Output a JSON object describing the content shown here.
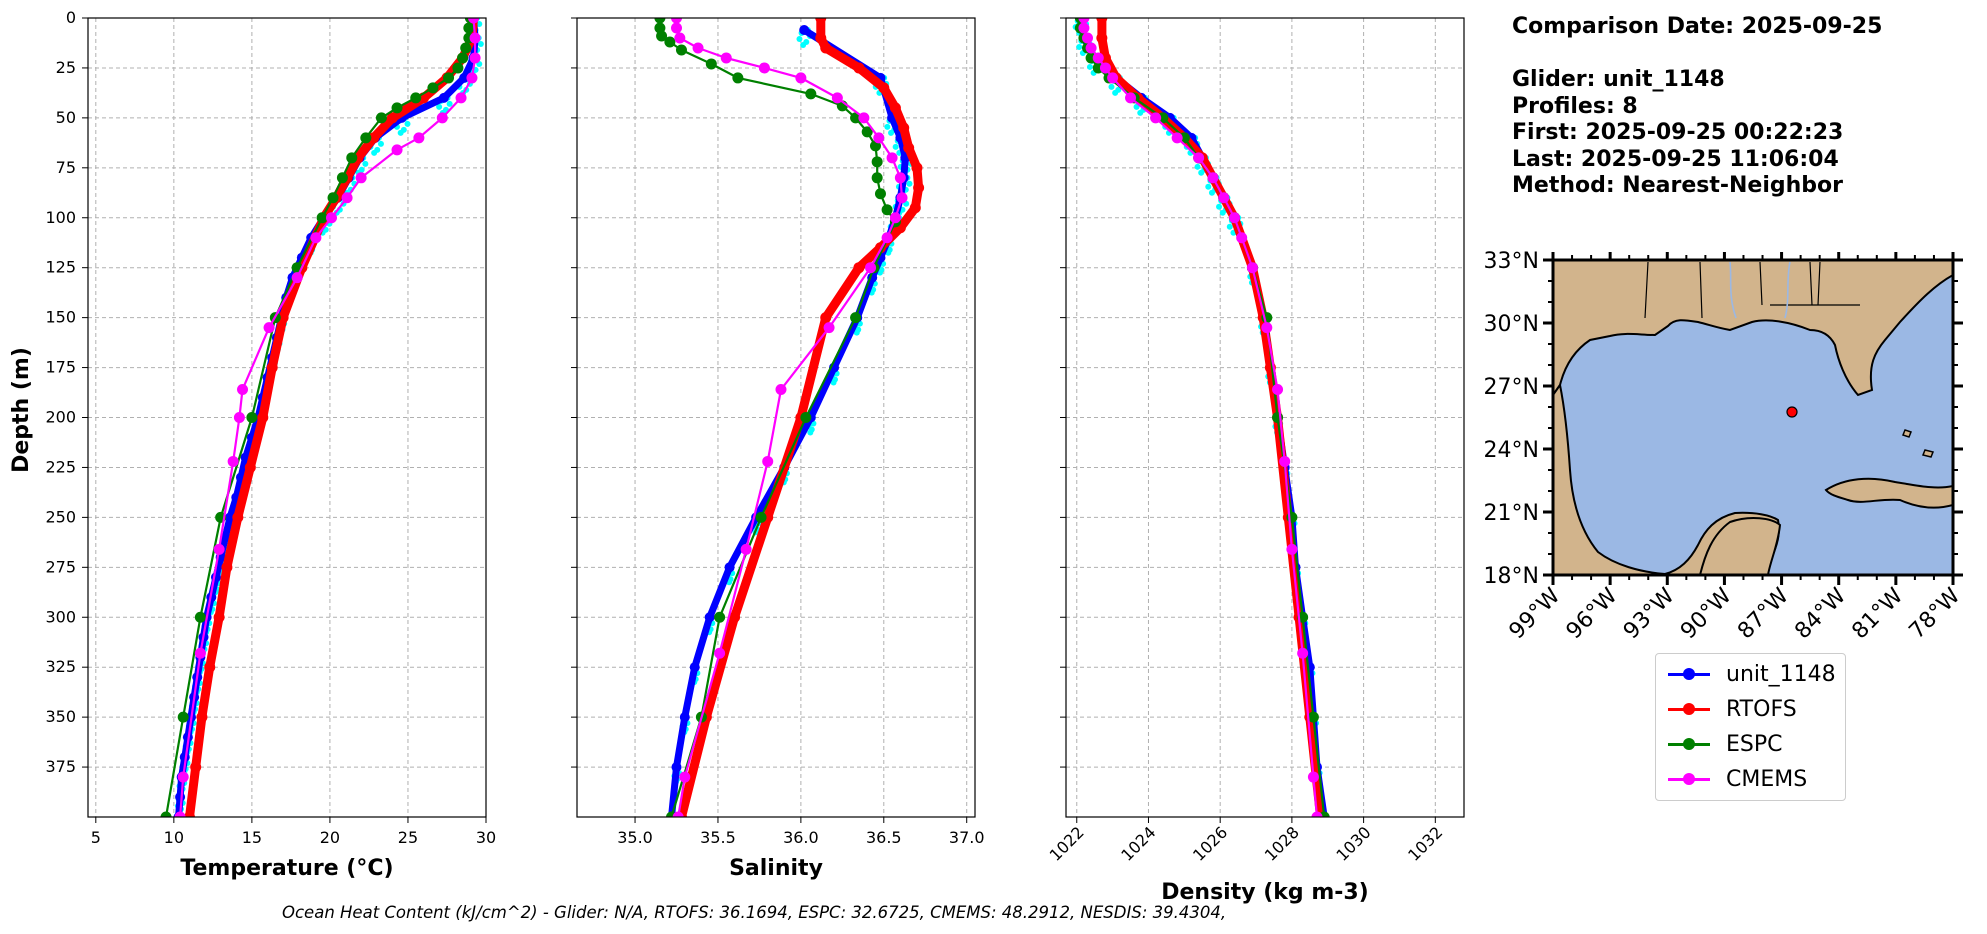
{
  "info": {
    "comparison_date": "Comparison Date: 2025-09-25",
    "glider": "Glider: unit_1148",
    "profiles": "Profiles: 8",
    "first": "First: 2025-09-25 00:22:23",
    "last": "Last: 2025-09-25 11:06:04",
    "method": "Method: Nearest-Neighbor"
  },
  "footer": "Ocean Heat Content (kJ/cm^2) - Glider: N/A,  RTOFS: 36.1694,  ESPC: 32.6725,  CMEMS: 48.2912,  NESDIS: 39.4304,",
  "legend": [
    {
      "label": "unit_1148",
      "color": "#0000ff"
    },
    {
      "label": "RTOFS",
      "color": "#ff0000"
    },
    {
      "label": "ESPC",
      "color": "#008000"
    },
    {
      "label": "CMEMS",
      "color": "#ff00ff"
    }
  ],
  "chart_data": [
    {
      "type": "line",
      "xlabel": "Temperature (°C)",
      "ylabel": "Depth (m)",
      "xlim": [
        4.5,
        30
      ],
      "ylim": [
        400,
        0
      ],
      "xticks": [
        5,
        10,
        15,
        20,
        25,
        30
      ],
      "yticks": [
        0,
        25,
        50,
        75,
        100,
        125,
        150,
        175,
        200,
        225,
        250,
        275,
        300,
        325,
        350,
        375
      ],
      "grid": true,
      "series": [
        {
          "name": "unit_1148",
          "color": "#0000ff",
          "depth": [
            0,
            10,
            20,
            30,
            40,
            50,
            60,
            70,
            80,
            90,
            100,
            110,
            120,
            130,
            140,
            150,
            160,
            170,
            180,
            190,
            200,
            210,
            220,
            230,
            240,
            250,
            260,
            270,
            280,
            290,
            300,
            310,
            320,
            330,
            340,
            350,
            360,
            370,
            380,
            390,
            400
          ],
          "values": [
            29.2,
            29.3,
            29.2,
            28.6,
            27.3,
            24.6,
            22.9,
            21.9,
            21.2,
            20.5,
            19.6,
            18.8,
            18.2,
            17.6,
            17.2,
            16.9,
            16.6,
            16.3,
            16.0,
            15.7,
            15.4,
            15.0,
            14.6,
            14.3,
            14.0,
            13.6,
            13.3,
            13.0,
            12.7,
            12.4,
            12.1,
            11.9,
            11.7,
            11.5,
            11.3,
            11.1,
            10.9,
            10.7,
            10.5,
            10.4,
            10.3
          ]
        },
        {
          "name": "RTOFS",
          "color": "#ff0000",
          "depth": [
            0,
            10,
            20,
            30,
            40,
            50,
            60,
            70,
            80,
            90,
            100,
            125,
            150,
            175,
            200,
            225,
            250,
            275,
            300,
            325,
            350,
            375,
            400
          ],
          "values": [
            29.2,
            29.1,
            28.5,
            27.5,
            26.0,
            24.0,
            22.8,
            21.8,
            21.1,
            20.4,
            19.6,
            18.2,
            17.0,
            16.3,
            15.7,
            14.9,
            14.1,
            13.4,
            12.9,
            12.3,
            11.8,
            11.4,
            11.0
          ]
        },
        {
          "name": "ESPC",
          "color": "#008000",
          "depth": [
            0,
            5,
            10,
            15,
            20,
            25,
            30,
            35,
            40,
            45,
            50,
            60,
            70,
            80,
            90,
            100,
            125,
            150,
            200,
            250,
            300,
            350,
            400
          ],
          "values": [
            29.0,
            28.9,
            28.9,
            28.7,
            28.5,
            28.2,
            27.6,
            26.6,
            25.5,
            24.3,
            23.3,
            22.3,
            21.4,
            20.8,
            20.2,
            19.5,
            17.9,
            16.5,
            15.0,
            13.0,
            11.7,
            10.6,
            9.5
          ]
        },
        {
          "name": "CMEMS",
          "color": "#ff00ff",
          "depth": [
            0,
            10,
            20,
            30,
            40,
            50,
            60,
            66,
            80,
            90,
            100,
            110,
            130,
            155,
            186,
            200,
            222,
            266,
            318,
            380,
            400
          ],
          "values": [
            29.2,
            29.3,
            29.3,
            29.1,
            28.4,
            27.2,
            25.7,
            24.3,
            22.0,
            21.1,
            20.1,
            19.1,
            17.9,
            16.1,
            14.4,
            14.2,
            13.8,
            12.9,
            11.7,
            10.6,
            10.4
          ]
        }
      ]
    },
    {
      "type": "line",
      "xlabel": "Salinity",
      "xlim": [
        34.65,
        37.05
      ],
      "ylim": [
        400,
        0
      ],
      "xticks": [
        35.0,
        35.5,
        36.0,
        36.5,
        37.0
      ],
      "xtick_labels": [
        "35.0",
        "35.5",
        "36.0",
        "36.5",
        "37.0"
      ],
      "grid": true,
      "series": [
        {
          "name": "unit_1148",
          "color": "#0000ff",
          "depth": [
            6,
            30,
            50,
            60,
            70,
            80,
            90,
            100,
            110,
            120,
            130,
            150,
            175,
            200,
            225,
            250,
            275,
            300,
            325,
            350,
            375,
            400
          ],
          "values": [
            36.02,
            36.48,
            36.55,
            36.6,
            36.63,
            36.62,
            36.6,
            36.57,
            36.53,
            36.48,
            36.43,
            36.34,
            36.2,
            36.06,
            35.9,
            35.73,
            35.57,
            35.45,
            35.36,
            35.3,
            35.25,
            35.22
          ]
        },
        {
          "name": "RTOFS",
          "color": "#ff0000",
          "depth": [
            0,
            10,
            15,
            25,
            35,
            45,
            55,
            65,
            75,
            85,
            95,
            105,
            115,
            125,
            150,
            200,
            250,
            300,
            350,
            400
          ],
          "values": [
            36.12,
            36.12,
            36.15,
            36.35,
            36.5,
            36.57,
            36.62,
            36.65,
            36.7,
            36.71,
            36.69,
            36.6,
            36.48,
            36.35,
            36.15,
            36.0,
            35.8,
            35.6,
            35.43,
            35.28
          ]
        },
        {
          "name": "ESPC",
          "color": "#008000",
          "depth": [
            0,
            5,
            9,
            12,
            16,
            23,
            30,
            38,
            44,
            50,
            57,
            64,
            72,
            80,
            88,
            96,
            102,
            125,
            150,
            200,
            250,
            300,
            350,
            400
          ],
          "values": [
            35.15,
            35.15,
            35.16,
            35.21,
            35.28,
            35.46,
            35.62,
            36.06,
            36.25,
            36.33,
            36.4,
            36.45,
            36.46,
            36.46,
            36.48,
            36.52,
            36.57,
            36.44,
            36.33,
            36.03,
            35.76,
            35.51,
            35.4,
            35.22
          ]
        },
        {
          "name": "CMEMS",
          "color": "#ff00ff",
          "depth": [
            0,
            5,
            10,
            15,
            20,
            25,
            30,
            40,
            50,
            60,
            70,
            80,
            90,
            100,
            110,
            125,
            155,
            186,
            222,
            266,
            318,
            380,
            400
          ],
          "values": [
            35.25,
            35.25,
            35.27,
            35.38,
            35.55,
            35.78,
            36.0,
            36.22,
            36.38,
            36.47,
            36.55,
            36.6,
            36.61,
            36.57,
            36.52,
            36.42,
            36.17,
            35.88,
            35.8,
            35.67,
            35.51,
            35.3,
            35.26
          ]
        }
      ]
    },
    {
      "type": "line",
      "xlabel": "Density (kg m-3)",
      "xlim": [
        1021.7,
        1032.8
      ],
      "ylim": [
        400,
        0
      ],
      "xticks": [
        1022,
        1024,
        1026,
        1028,
        1030,
        1032
      ],
      "grid": true,
      "series": [
        {
          "name": "unit_1148",
          "color": "#0000ff",
          "depth": [
            0,
            10,
            20,
            30,
            40,
            50,
            60,
            70,
            80,
            90,
            100,
            125,
            150,
            175,
            200,
            225,
            250,
            275,
            300,
            325,
            350,
            375,
            400
          ],
          "values": [
            1022.1,
            1022.2,
            1022.5,
            1023.1,
            1023.8,
            1024.6,
            1025.2,
            1025.5,
            1025.8,
            1026.1,
            1026.4,
            1026.9,
            1027.2,
            1027.4,
            1027.6,
            1027.8,
            1028.0,
            1028.1,
            1028.3,
            1028.5,
            1028.6,
            1028.7,
            1028.9
          ]
        },
        {
          "name": "RTOFS",
          "color": "#ff0000",
          "depth": [
            0,
            10,
            20,
            30,
            40,
            50,
            60,
            70,
            80,
            90,
            100,
            125,
            150,
            175,
            200,
            250,
            300,
            350,
            400
          ],
          "values": [
            1022.7,
            1022.7,
            1022.8,
            1023.1,
            1023.7,
            1024.4,
            1025.0,
            1025.5,
            1025.8,
            1026.1,
            1026.4,
            1026.9,
            1027.2,
            1027.4,
            1027.6,
            1027.9,
            1028.2,
            1028.5,
            1028.8
          ]
        },
        {
          "name": "ESPC",
          "color": "#008000",
          "depth": [
            0,
            5,
            10,
            15,
            20,
            25,
            30,
            40,
            50,
            60,
            70,
            80,
            90,
            100,
            125,
            150,
            200,
            250,
            300,
            350,
            400
          ],
          "values": [
            1022.1,
            1022.1,
            1022.2,
            1022.3,
            1022.4,
            1022.6,
            1022.9,
            1023.6,
            1024.4,
            1025.0,
            1025.4,
            1025.8,
            1026.1,
            1026.4,
            1026.9,
            1027.3,
            1027.6,
            1028.0,
            1028.3,
            1028.6,
            1028.9
          ]
        },
        {
          "name": "CMEMS",
          "color": "#ff00ff",
          "depth": [
            0,
            5,
            10,
            15,
            20,
            25,
            30,
            40,
            50,
            60,
            70,
            80,
            90,
            100,
            110,
            125,
            155,
            186,
            222,
            266,
            318,
            380,
            400
          ],
          "values": [
            1022.2,
            1022.2,
            1022.3,
            1022.4,
            1022.6,
            1022.8,
            1023.0,
            1023.5,
            1024.2,
            1024.8,
            1025.4,
            1025.8,
            1026.1,
            1026.4,
            1026.6,
            1026.9,
            1027.3,
            1027.6,
            1027.8,
            1028.0,
            1028.3,
            1028.6,
            1028.7
          ]
        }
      ]
    }
  ],
  "map": {
    "lat_ticks": [
      "33°N",
      "30°N",
      "27°N",
      "24°N",
      "21°N",
      "18°N"
    ],
    "lon_ticks": [
      "99°W",
      "96°W",
      "93°W",
      "90°W",
      "87°W",
      "84°W",
      "81°W",
      "78°W"
    ],
    "glider_position": {
      "lon": -86.5,
      "lat": 26.0
    },
    "land_color": "#d2b48c",
    "ocean_color": "#9bb8e4"
  }
}
